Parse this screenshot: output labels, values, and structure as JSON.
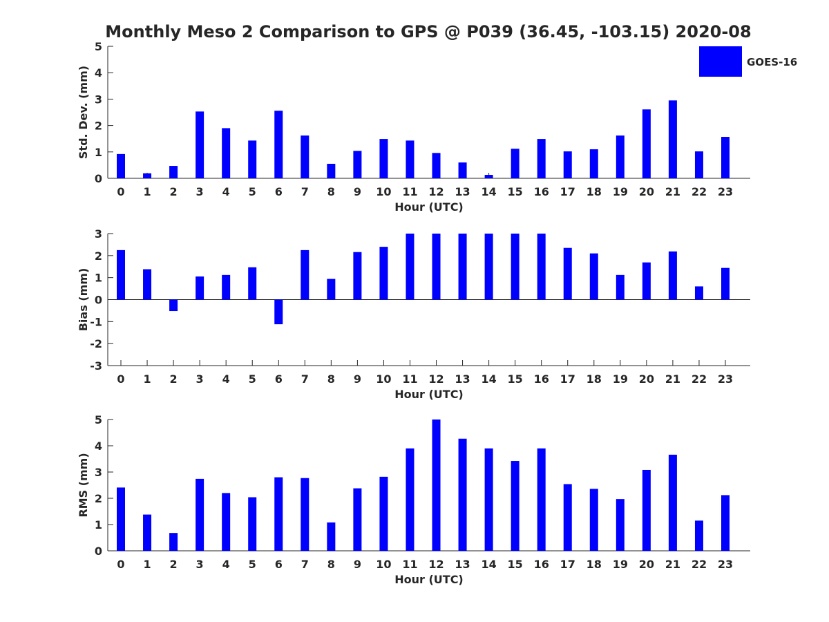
{
  "title": "Monthly Meso 2 Comparison to GPS @ P039 (36.45, -103.15) 2020-08",
  "legend": {
    "label": "GOES-16",
    "color": "#0000ff",
    "placement": "top-right"
  },
  "bar_color": "#0000ff",
  "chart_data": [
    {
      "type": "bar",
      "panel": "std-dev",
      "ylabel": "Std. Dev. (mm)",
      "xlabel": "Hour (UTC)",
      "ylim": [
        0,
        5
      ],
      "yticks": [
        0,
        1,
        2,
        3,
        4,
        5
      ],
      "zero_line": false,
      "categories": [
        "0",
        "1",
        "2",
        "3",
        "4",
        "5",
        "6",
        "7",
        "8",
        "9",
        "10",
        "11",
        "12",
        "13",
        "14",
        "15",
        "16",
        "17",
        "18",
        "19",
        "20",
        "21",
        "22",
        "23"
      ],
      "series": [
        {
          "name": "GOES-16",
          "values": [
            0.92,
            0.19,
            0.47,
            2.53,
            1.9,
            1.43,
            2.56,
            1.62,
            0.55,
            1.04,
            1.49,
            1.43,
            0.96,
            0.6,
            0.13,
            1.12,
            1.49,
            1.02,
            1.1,
            1.62,
            2.61,
            2.95,
            1.02,
            1.57
          ]
        }
      ]
    },
    {
      "type": "bar",
      "panel": "bias",
      "ylabel": "Bias (mm)",
      "xlabel": "Hour (UTC)",
      "ylim": [
        -3,
        3
      ],
      "yticks": [
        -3,
        -2,
        -1,
        0,
        1,
        2,
        3
      ],
      "zero_line": true,
      "categories": [
        "0",
        "1",
        "2",
        "3",
        "4",
        "5",
        "6",
        "7",
        "8",
        "9",
        "10",
        "11",
        "12",
        "13",
        "14",
        "15",
        "16",
        "17",
        "18",
        "19",
        "20",
        "21",
        "22",
        "23"
      ],
      "series": [
        {
          "name": "GOES-16",
          "values": [
            2.25,
            1.38,
            -0.52,
            1.05,
            1.12,
            1.47,
            -1.12,
            2.25,
            0.94,
            2.16,
            2.4,
            3.0,
            3.0,
            3.0,
            3.0,
            3.0,
            3.0,
            2.35,
            2.1,
            1.12,
            1.69,
            2.19,
            0.6,
            1.44
          ]
        }
      ]
    },
    {
      "type": "bar",
      "panel": "rms",
      "ylabel": "RMS (mm)",
      "xlabel": "Hour (UTC)",
      "ylim": [
        0,
        5
      ],
      "yticks": [
        0,
        1,
        2,
        3,
        4,
        5
      ],
      "zero_line": false,
      "categories": [
        "0",
        "1",
        "2",
        "3",
        "4",
        "5",
        "6",
        "7",
        "8",
        "9",
        "10",
        "11",
        "12",
        "13",
        "14",
        "15",
        "16",
        "17",
        "18",
        "19",
        "20",
        "21",
        "22",
        "23"
      ],
      "series": [
        {
          "name": "GOES-16",
          "values": [
            2.41,
            1.38,
            0.68,
            2.74,
            2.2,
            2.04,
            2.8,
            2.77,
            1.08,
            2.38,
            2.82,
            3.9,
            5.0,
            4.27,
            3.9,
            3.42,
            3.9,
            2.54,
            2.36,
            1.97,
            3.08,
            3.66,
            1.15,
            2.12
          ]
        }
      ]
    }
  ]
}
